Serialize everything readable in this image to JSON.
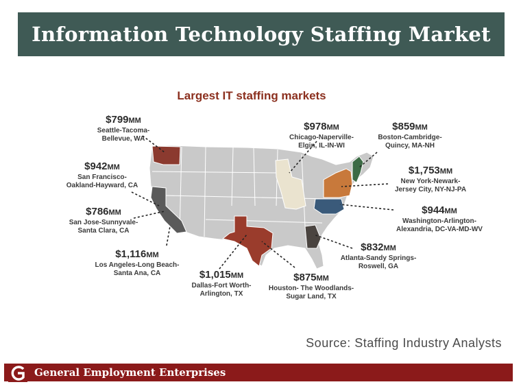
{
  "slide": {
    "title": "Information Technology Staffing Market",
    "map_title": "Largest IT staffing markets",
    "source": "Source: Staffing Industry Analysts",
    "footer_company": "General Employment Enterprises"
  },
  "markets": [
    {
      "id": "seattle",
      "amount": "$799",
      "unit": "MM",
      "name": [
        "Seattle-Tacoma-",
        "Bellevue, WA"
      ]
    },
    {
      "id": "sanfrancisco",
      "amount": "$942",
      "unit": "MM",
      "name": [
        "San Francisco-",
        "Oakland-Hayward, CA"
      ]
    },
    {
      "id": "sanjose",
      "amount": "$786",
      "unit": "MM",
      "name": [
        "San Jose-Sunnyvale-",
        "Santa Clara, CA"
      ]
    },
    {
      "id": "losangeles",
      "amount": "$1,116",
      "unit": "MM",
      "name": [
        "Los Angeles-Long Beach-",
        "Santa Ana, CA"
      ]
    },
    {
      "id": "dallas",
      "amount": "$1,015",
      "unit": "MM",
      "name": [
        "Dallas-Fort Worth-",
        "Arlington, TX"
      ]
    },
    {
      "id": "houston",
      "amount": "$875",
      "unit": "MM",
      "name": [
        "Houston- The Woodlands-",
        "Sugar Land, TX"
      ]
    },
    {
      "id": "chicago",
      "amount": "$978",
      "unit": "MM",
      "name": [
        "Chicago-Naperville-",
        "Elgin, IL-IN-WI"
      ]
    },
    {
      "id": "boston",
      "amount": "$859",
      "unit": "MM",
      "name": [
        "Boston-Cambridge-",
        "Quincy, MA-NH"
      ]
    },
    {
      "id": "newyork",
      "amount": "$1,753",
      "unit": "MM",
      "name": [
        "New York-Newark-",
        "Jersey City, NY-NJ-PA"
      ]
    },
    {
      "id": "washington",
      "amount": "$944",
      "unit": "MM",
      "name": [
        "Washington-Arlington-",
        "Alexandria, DC-VA-MD-WV"
      ]
    },
    {
      "id": "atlanta",
      "amount": "$832",
      "unit": "MM",
      "name": [
        "Atlanta-Sandy Springs-",
        "Roswell, GA"
      ]
    }
  ],
  "colors": {
    "title_bar": "#3f5a55",
    "map_title": "#8b2f1e",
    "footer": "#8b1a1a",
    "map_base": "#c9c9c9",
    "seattle": "#8b3a2f",
    "california": "#5a5a5a",
    "texas": "#9a3c2c",
    "illinois": "#eae3cf",
    "new_york": "#c8793b",
    "new_england": "#3c6b45",
    "dc_area": "#3a5a7a",
    "georgia": "#4a4440"
  }
}
